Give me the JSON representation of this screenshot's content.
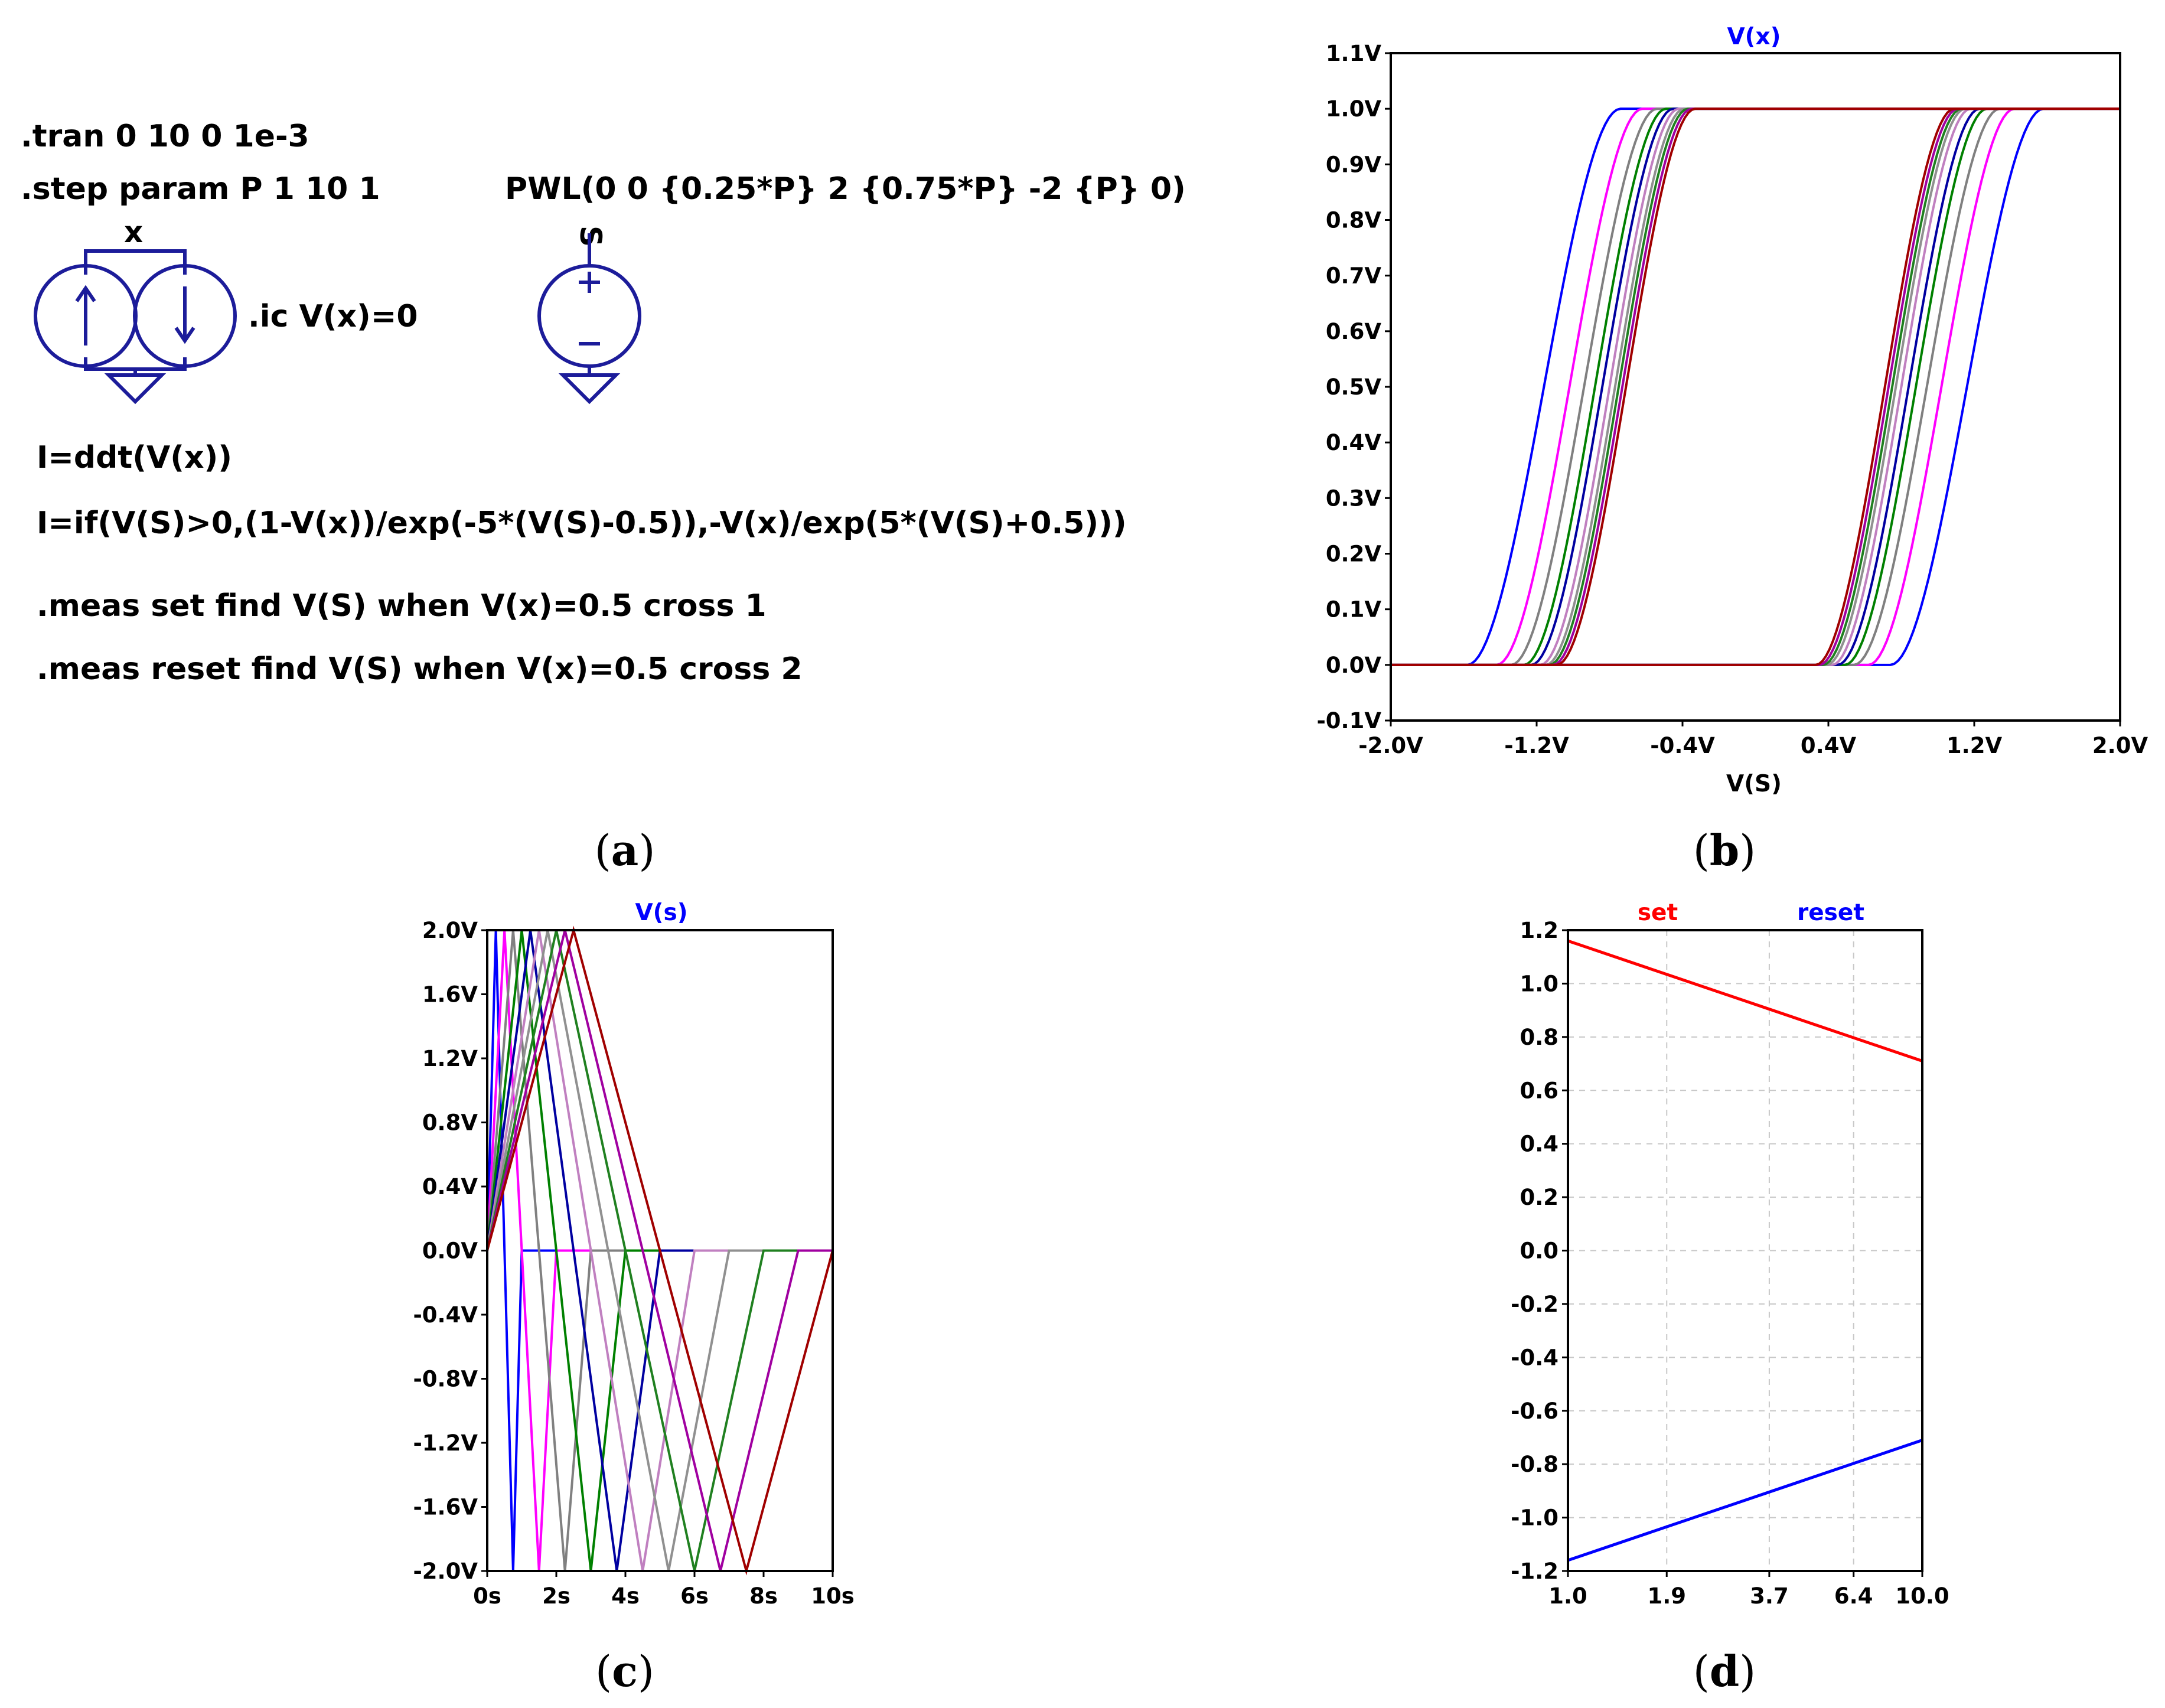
{
  "panel_a": {
    "directives": {
      "tran": ".tran 0 10 0 1e-3",
      "step": ".step param P 1 10 1",
      "ic": ".ic V(x)=0",
      "pwl": "PWL(0 0 {0.25*P} 2 {0.75*P} -2 {P} 0)",
      "eq1": "I=ddt(V(x))",
      "eq2": "I=if(V(S)>0,(1-V(x))/exp(-5*(V(S)-0.5)),-V(x)/exp(5*(V(S)+0.5)))",
      "meas_set": ".meas set find V(S) when V(x)=0.5 cross 1",
      "meas_reset": ".meas reset find V(S) when V(x)=0.5 cross 2"
    },
    "node_x": "x",
    "node_s": "S",
    "icons": [
      "current-source-up-icon",
      "current-source-down-icon",
      "ground-icon",
      "voltage-source-icon"
    ],
    "symbol_color": "#1c1c9a"
  },
  "captions": {
    "a": "a",
    "b": "b",
    "c": "c",
    "d": "d"
  },
  "step_colors": [
    "#0000ff",
    "#ff00ff",
    "#808080",
    "#008000",
    "#0000a0",
    "#c080c0",
    "#909090",
    "#208020",
    "#a000a0",
    "#a00000"
  ],
  "chart_data": [
    {
      "panel": "b",
      "type": "line",
      "title": "V(x)",
      "title_color": "#0000ff",
      "xlabel": "V(S)",
      "ylabel": "",
      "xlim": [
        -2.0,
        2.0
      ],
      "ylim": [
        -0.1,
        1.1
      ],
      "xticks": [
        "-2.0V",
        "-1.2V",
        "-0.4V",
        "0.4V",
        "1.2V",
        "2.0V"
      ],
      "yticks": [
        "-0.1V",
        "0.0V",
        "0.1V",
        "0.2V",
        "0.3V",
        "0.4V",
        "0.5V",
        "0.6V",
        "0.7V",
        "0.8V",
        "0.9V",
        "1.0V",
        "1.1V"
      ],
      "grid": false,
      "series": [
        {
          "P": 1,
          "set_x": 1.16,
          "reset_x": -1.16,
          "half_width": 0.42
        },
        {
          "P": 2,
          "set_x": 1.02,
          "reset_x": -1.02,
          "half_width": 0.4
        },
        {
          "P": 3,
          "set_x": 0.94,
          "reset_x": -0.94,
          "half_width": 0.4
        },
        {
          "P": 4,
          "set_x": 0.88,
          "reset_x": -0.88,
          "half_width": 0.39
        },
        {
          "P": 5,
          "set_x": 0.84,
          "reset_x": -0.84,
          "half_width": 0.39
        },
        {
          "P": 6,
          "set_x": 0.8,
          "reset_x": -0.8,
          "half_width": 0.38
        },
        {
          "P": 7,
          "set_x": 0.77,
          "reset_x": -0.77,
          "half_width": 0.38
        },
        {
          "P": 8,
          "set_x": 0.75,
          "reset_x": -0.75,
          "half_width": 0.38
        },
        {
          "P": 9,
          "set_x": 0.73,
          "reset_x": -0.73,
          "half_width": 0.38
        },
        {
          "P": 10,
          "set_x": 0.71,
          "reset_x": -0.71,
          "half_width": 0.38
        }
      ]
    },
    {
      "panel": "c",
      "type": "line",
      "title": "V(s)",
      "title_color": "#0000ff",
      "xlabel": "",
      "ylabel": "",
      "xlim": [
        0,
        10
      ],
      "ylim": [
        -2.0,
        2.0
      ],
      "xticks": [
        "0s",
        "2s",
        "4s",
        "6s",
        "8s",
        "10s"
      ],
      "yticks": [
        "-2.0V",
        "-1.6V",
        "-1.2V",
        "-0.8V",
        "-0.4V",
        "0.0V",
        "0.4V",
        "0.8V",
        "1.2V",
        "1.6V",
        "2.0V"
      ],
      "grid": false,
      "waveform": "PWL(0 0 {0.25*P} 2 {0.75*P} -2 {P} 0)",
      "series": [
        {
          "P": 1,
          "points": [
            [
              0,
              0
            ],
            [
              0.25,
              2
            ],
            [
              0.75,
              -2
            ],
            [
              1,
              0
            ],
            [
              10,
              0
            ]
          ]
        },
        {
          "P": 2,
          "points": [
            [
              0,
              0
            ],
            [
              0.5,
              2
            ],
            [
              1.5,
              -2
            ],
            [
              2,
              0
            ],
            [
              10,
              0
            ]
          ]
        },
        {
          "P": 3,
          "points": [
            [
              0,
              0
            ],
            [
              0.75,
              2
            ],
            [
              2.25,
              -2
            ],
            [
              3,
              0
            ],
            [
              10,
              0
            ]
          ]
        },
        {
          "P": 4,
          "points": [
            [
              0,
              0
            ],
            [
              1,
              2
            ],
            [
              3,
              -2
            ],
            [
              4,
              0
            ],
            [
              10,
              0
            ]
          ]
        },
        {
          "P": 5,
          "points": [
            [
              0,
              0
            ],
            [
              1.25,
              2
            ],
            [
              3.75,
              -2
            ],
            [
              5,
              0
            ],
            [
              10,
              0
            ]
          ]
        },
        {
          "P": 6,
          "points": [
            [
              0,
              0
            ],
            [
              1.5,
              2
            ],
            [
              4.5,
              -2
            ],
            [
              6,
              0
            ],
            [
              10,
              0
            ]
          ]
        },
        {
          "P": 7,
          "points": [
            [
              0,
              0
            ],
            [
              1.75,
              2
            ],
            [
              5.25,
              -2
            ],
            [
              7,
              0
            ],
            [
              10,
              0
            ]
          ]
        },
        {
          "P": 8,
          "points": [
            [
              0,
              0
            ],
            [
              2,
              2
            ],
            [
              6,
              -2
            ],
            [
              8,
              0
            ],
            [
              10,
              0
            ]
          ]
        },
        {
          "P": 9,
          "points": [
            [
              0,
              0
            ],
            [
              2.25,
              2
            ],
            [
              6.75,
              -2
            ],
            [
              9,
              0
            ],
            [
              10,
              0
            ]
          ]
        },
        {
          "P": 10,
          "points": [
            [
              0,
              0
            ],
            [
              2.5,
              2
            ],
            [
              7.5,
              -2
            ],
            [
              10,
              0
            ]
          ]
        }
      ]
    },
    {
      "panel": "d",
      "type": "line",
      "title": "",
      "xlabel": "",
      "ylabel": "",
      "x_scale": "log",
      "xlim": [
        1.0,
        10.0
      ],
      "ylim": [
        -1.2,
        1.2
      ],
      "xticks": [
        "1.0",
        "1.9",
        "3.7",
        "6.4",
        "10.0"
      ],
      "xtick_values": [
        1.0,
        1.9,
        3.7,
        6.4,
        10.0
      ],
      "yticks": [
        "-1.2",
        "-1.0",
        "-0.8",
        "-0.6",
        "-0.4",
        "-0.2",
        "0.0",
        "0.2",
        "0.4",
        "0.6",
        "0.8",
        "1.0",
        "1.2"
      ],
      "grid": true,
      "legend": [
        {
          "name": "set",
          "color": "#ff0000"
        },
        {
          "name": "reset",
          "color": "#0000ff"
        }
      ],
      "series": [
        {
          "name": "set",
          "color": "#ff0000",
          "x": [
            1.0,
            10.0
          ],
          "y": [
            1.16,
            0.71
          ]
        },
        {
          "name": "reset",
          "color": "#0000ff",
          "x": [
            1.0,
            10.0
          ],
          "y": [
            -1.16,
            -0.71
          ]
        }
      ]
    }
  ]
}
